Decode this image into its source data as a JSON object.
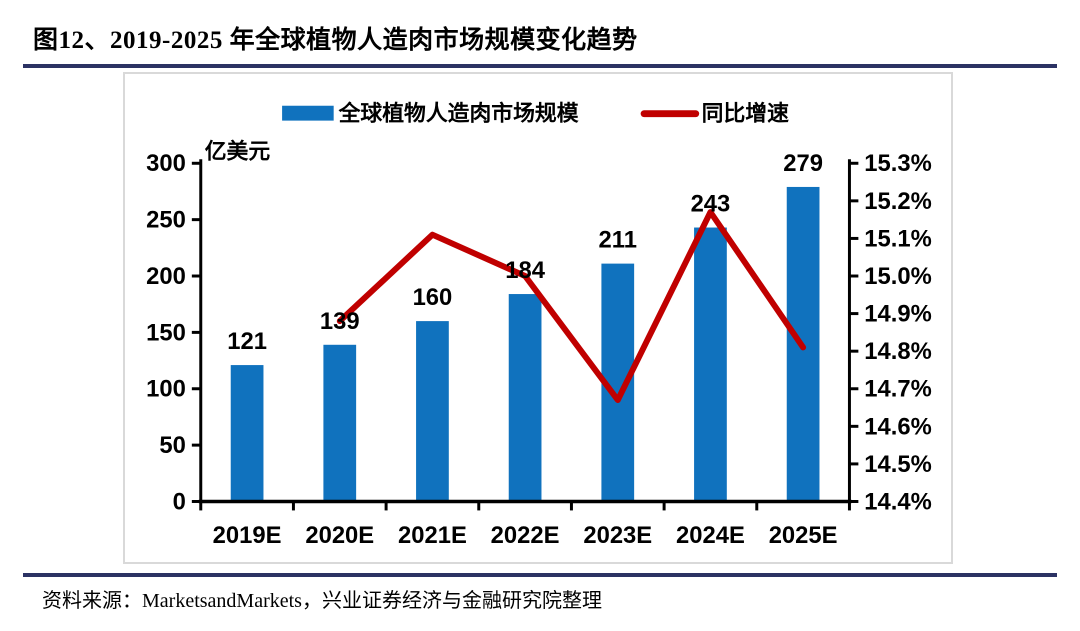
{
  "page": {
    "title": "图12、2019-2025 年全球植物人造肉市场规模变化趋势",
    "source": "资料来源：MarketsandMarkets，兴业证券经济与金融研究院整理"
  },
  "colors": {
    "bar": "#1072BE",
    "line": "#C00000",
    "rule": "#2B3263",
    "axis": "#000000",
    "chart_border": "#D9D9D9"
  },
  "chart_data": {
    "type": "bar",
    "combo": "bar+line",
    "title": "",
    "categories": [
      "2019E",
      "2020E",
      "2021E",
      "2022E",
      "2023E",
      "2024E",
      "2025E"
    ],
    "series": [
      {
        "name": "全球植物人造肉市场规模",
        "type": "bar",
        "axis": "left",
        "values": [
          121,
          139,
          160,
          184,
          211,
          243,
          279
        ]
      },
      {
        "name": "同比增速",
        "type": "line",
        "axis": "right",
        "values": [
          null,
          14.88,
          15.11,
          15.0,
          14.67,
          15.17,
          14.81
        ]
      }
    ],
    "left_axis": {
      "title": "亿美元",
      "min": 0,
      "max": 300,
      "step": 50
    },
    "right_axis": {
      "min": 14.4,
      "max": 15.3,
      "step": 0.1,
      "suffix": "%",
      "decimals": 1
    },
    "legend_position": "top",
    "grid": false,
    "data_labels": true
  }
}
